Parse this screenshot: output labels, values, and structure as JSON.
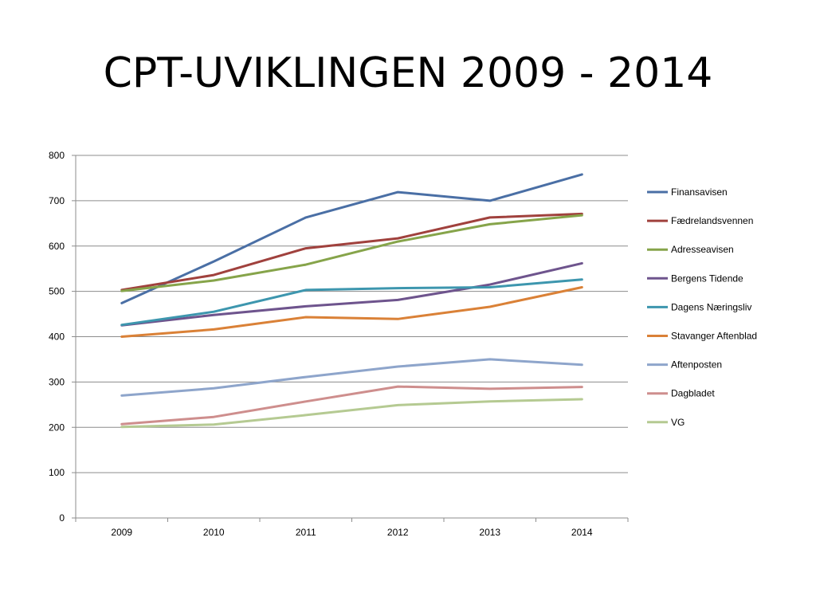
{
  "slide": {
    "title": "CPT-UVIKLINGEN 2009 - 2014"
  },
  "chart_data": {
    "type": "line",
    "title": "",
    "xlabel": "",
    "ylabel": "",
    "ylim": [
      0,
      800
    ],
    "y_ticks": [
      0,
      100,
      200,
      300,
      400,
      500,
      600,
      700,
      800
    ],
    "grid": "horizontal",
    "legend_position": "right",
    "categories": [
      "2009",
      "2010",
      "2011",
      "2012",
      "2013",
      "2014"
    ],
    "series": [
      {
        "name": "Finansavisen",
        "color": "#4A6FA5",
        "values": [
          474,
          566,
          663,
          719,
          700,
          758
        ]
      },
      {
        "name": "Fædrelandsvennen",
        "color": "#A0413D",
        "values": [
          503,
          536,
          595,
          617,
          663,
          671
        ]
      },
      {
        "name": "Adresseavisen",
        "color": "#86A44A",
        "values": [
          501,
          524,
          559,
          610,
          648,
          668
        ]
      },
      {
        "name": "Bergens Tidende",
        "color": "#6E548D",
        "values": [
          425,
          448,
          467,
          481,
          515,
          562
        ]
      },
      {
        "name": "Dagens Næringsliv",
        "color": "#3D96AE",
        "values": [
          426,
          455,
          503,
          507,
          509,
          526
        ]
      },
      {
        "name": "Stavanger Aftenblad",
        "color": "#DA8137",
        "values": [
          400,
          416,
          443,
          439,
          466,
          509
        ]
      },
      {
        "name": "Aftenposten",
        "color": "#8EA5CB",
        "values": [
          270,
          286,
          311,
          334,
          350,
          338
        ]
      },
      {
        "name": "Dagbladet",
        "color": "#CE8E8D",
        "values": [
          207,
          223,
          257,
          290,
          285,
          289
        ]
      },
      {
        "name": "VG",
        "color": "#B5CA92",
        "values": [
          201,
          206,
          227,
          249,
          257,
          262
        ]
      }
    ]
  }
}
